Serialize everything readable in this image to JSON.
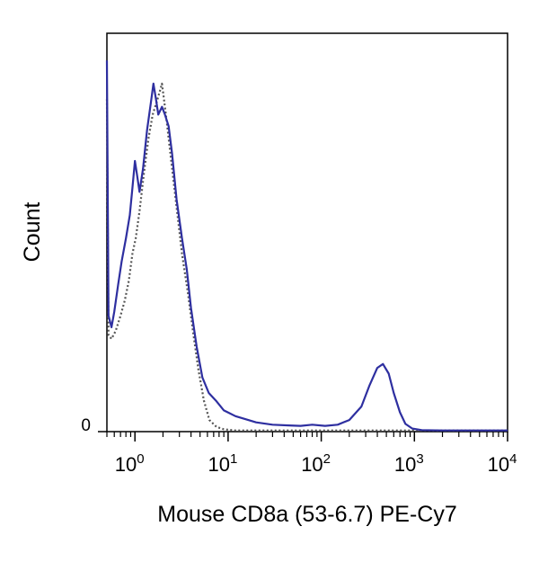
{
  "chart_data": {
    "type": "line",
    "title": "",
    "xlabel": "Mouse CD8a (53-6.7) PE-Cy7",
    "ylabel": "Count",
    "xscale": "log",
    "xlim": [
      0.5,
      10000
    ],
    "ylim": [
      0,
      100
    ],
    "x_ticks": [
      {
        "value": 1,
        "base": "10",
        "exp": "0"
      },
      {
        "value": 10,
        "base": "10",
        "exp": "1"
      },
      {
        "value": 100,
        "base": "10",
        "exp": "2"
      },
      {
        "value": 1000,
        "base": "10",
        "exp": "3"
      },
      {
        "value": 10000,
        "base": "10",
        "exp": "4"
      }
    ],
    "y_ticks": [
      {
        "value": 0,
        "label": "0"
      }
    ],
    "grid": false,
    "legend": "none",
    "series": [
      {
        "style": "solid",
        "color": "#2e2fa0",
        "points": [
          [
            0.5,
            96
          ],
          [
            0.52,
            30
          ],
          [
            0.56,
            27
          ],
          [
            0.6,
            31
          ],
          [
            0.66,
            38
          ],
          [
            0.72,
            44
          ],
          [
            0.8,
            50
          ],
          [
            0.88,
            56
          ],
          [
            0.94,
            63
          ],
          [
            1.0,
            70
          ],
          [
            1.06,
            66
          ],
          [
            1.12,
            62
          ],
          [
            1.22,
            68
          ],
          [
            1.35,
            78
          ],
          [
            1.48,
            85
          ],
          [
            1.58,
            90
          ],
          [
            1.68,
            86
          ],
          [
            1.78,
            82
          ],
          [
            1.95,
            84
          ],
          [
            2.1,
            82
          ],
          [
            2.3,
            79
          ],
          [
            2.5,
            72
          ],
          [
            2.8,
            60
          ],
          [
            3.2,
            50
          ],
          [
            3.6,
            42
          ],
          [
            4.0,
            32
          ],
          [
            4.6,
            22
          ],
          [
            5.3,
            14
          ],
          [
            6.2,
            10
          ],
          [
            7.4,
            8
          ],
          [
            9,
            5.5
          ],
          [
            12,
            4
          ],
          [
            16,
            3.1
          ],
          [
            20,
            2.4
          ],
          [
            30,
            1.8
          ],
          [
            45,
            1.6
          ],
          [
            60,
            1.5
          ],
          [
            80,
            1.8
          ],
          [
            110,
            1.5
          ],
          [
            150,
            1.8
          ],
          [
            200,
            3
          ],
          [
            270,
            6.5
          ],
          [
            330,
            12
          ],
          [
            400,
            16.5
          ],
          [
            460,
            17.5
          ],
          [
            530,
            15
          ],
          [
            600,
            10
          ],
          [
            700,
            5
          ],
          [
            800,
            2
          ],
          [
            950,
            0.8
          ],
          [
            1200,
            0.4
          ],
          [
            2000,
            0.3
          ],
          [
            10000,
            0.3
          ]
        ]
      },
      {
        "style": "dotted",
        "color": "#555555",
        "points": [
          [
            0.5,
            86
          ],
          [
            0.52,
            25
          ],
          [
            0.56,
            24
          ],
          [
            0.62,
            26
          ],
          [
            0.7,
            30
          ],
          [
            0.78,
            34
          ],
          [
            0.86,
            39
          ],
          [
            0.94,
            46
          ],
          [
            1.02,
            50
          ],
          [
            1.12,
            57
          ],
          [
            1.25,
            67
          ],
          [
            1.4,
            76
          ],
          [
            1.55,
            82
          ],
          [
            1.7,
            85
          ],
          [
            1.85,
            88
          ],
          [
            1.95,
            90
          ],
          [
            2.05,
            86
          ],
          [
            2.2,
            80
          ],
          [
            2.45,
            70
          ],
          [
            2.8,
            58
          ],
          [
            3.2,
            46
          ],
          [
            3.7,
            36
          ],
          [
            4.2,
            26
          ],
          [
            4.8,
            16
          ],
          [
            5.5,
            8
          ],
          [
            6.3,
            3
          ],
          [
            7.5,
            1.2
          ],
          [
            9,
            0.6
          ],
          [
            12,
            0.3
          ],
          [
            10000,
            0.3
          ]
        ]
      }
    ]
  }
}
